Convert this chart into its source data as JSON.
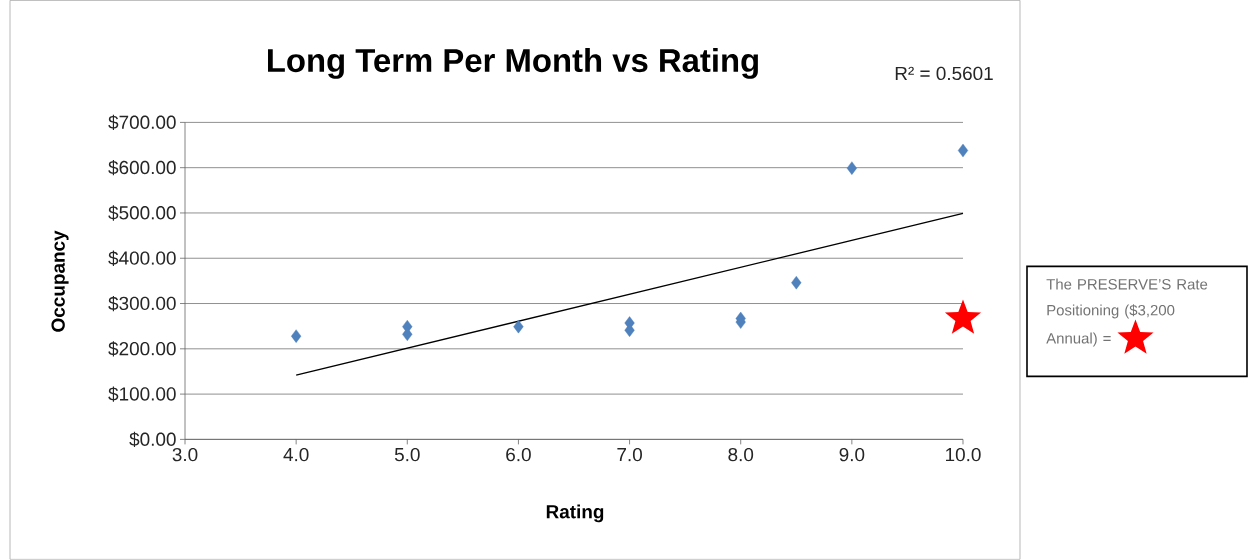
{
  "chart_data": {
    "type": "scatter",
    "title": "Long Term Per Month vs Rating",
    "xlabel": "Rating",
    "ylabel": "Occupancy",
    "annotations": [
      "R² = 0.5601"
    ],
    "xlim": [
      3,
      10
    ],
    "ylim": [
      0,
      700
    ],
    "xticks": [
      {
        "value": 3,
        "label": "3.0"
      },
      {
        "value": 4,
        "label": "4.0"
      },
      {
        "value": 5,
        "label": "5.0"
      },
      {
        "value": 6,
        "label": "6.0"
      },
      {
        "value": 7,
        "label": "7.0"
      },
      {
        "value": 8,
        "label": "8.0"
      },
      {
        "value": 9,
        "label": "9.0"
      },
      {
        "value": 10,
        "label": "10.0"
      }
    ],
    "yticks": [
      {
        "value": 0,
        "label": "$0.00"
      },
      {
        "value": 100,
        "label": "$100.00"
      },
      {
        "value": 200,
        "label": "$200.00"
      },
      {
        "value": 300,
        "label": "$300.00"
      },
      {
        "value": 400,
        "label": "$400.00"
      },
      {
        "value": 500,
        "label": "$500.00"
      },
      {
        "value": 600,
        "label": "$600.00"
      },
      {
        "value": 700,
        "label": "$700.00"
      }
    ],
    "grid": "y",
    "legend": "right",
    "series": [
      {
        "marker": "diamond",
        "color": "#4f81bd",
        "x": [
          4,
          5,
          5,
          6,
          7,
          7,
          8,
          8,
          8.5,
          9,
          10
        ],
        "values": [
          228,
          249,
          232,
          249,
          257,
          241,
          267,
          259,
          346,
          599,
          638
        ]
      },
      {
        "type": "line",
        "marker": "none",
        "color": "#000000",
        "x": [
          4,
          10
        ],
        "values": [
          142,
          499
        ]
      },
      {
        "marker": "star",
        "color": "#ff0000",
        "name": "The PRESERVE’S Rate Positioning ($3,200 Annual) =",
        "x": [
          10
        ],
        "values": [
          267
        ]
      }
    ]
  }
}
